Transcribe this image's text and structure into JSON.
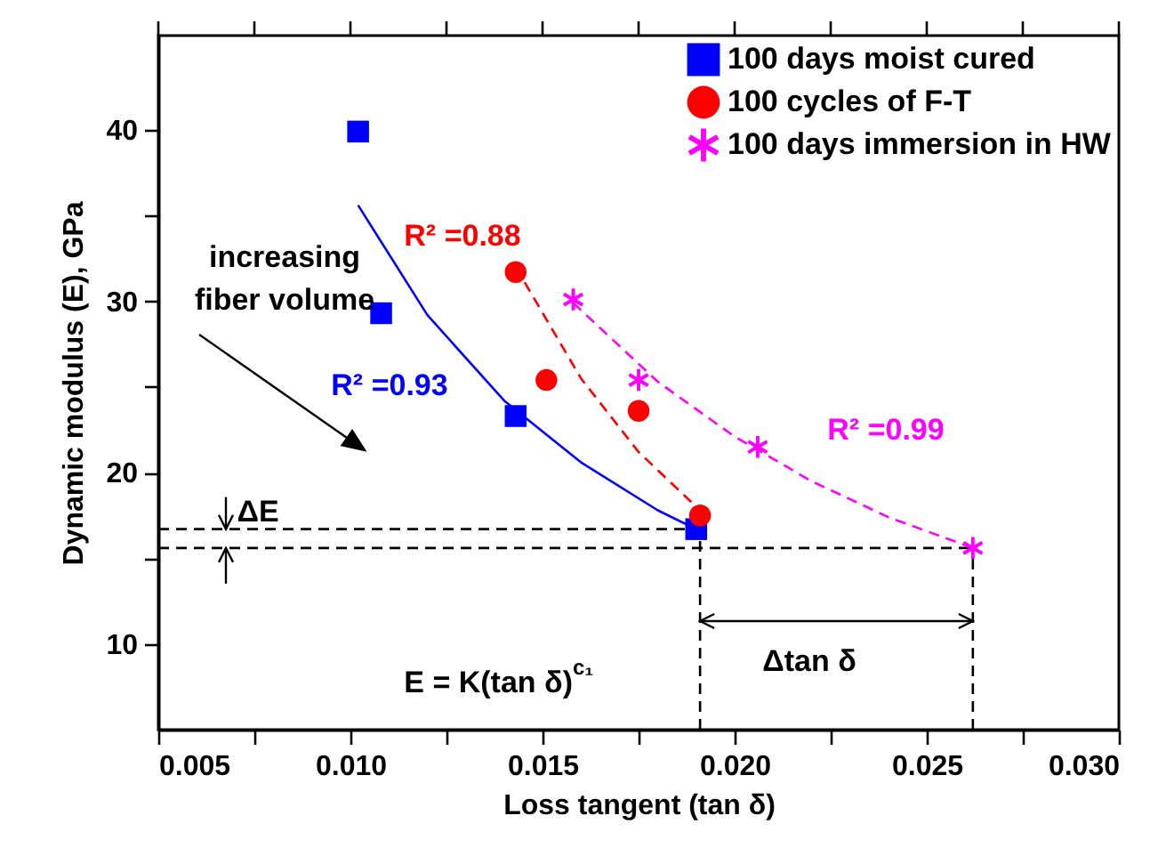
{
  "chart_data": {
    "type": "scatter",
    "xlabel": "Loss tangent (tan δ)",
    "ylabel": "Dynamic modulus (E),  GPa",
    "xlim": [
      0.005,
      0.03
    ],
    "ylim": [
      5,
      45.5
    ],
    "xticks": [
      {
        "value": 0.005,
        "label": "0.005"
      },
      {
        "value": 0.0075,
        "label": null
      },
      {
        "value": 0.01,
        "label": "0.010"
      },
      {
        "value": 0.0125,
        "label": null
      },
      {
        "value": 0.015,
        "label": "0.015"
      },
      {
        "value": 0.0175,
        "label": null
      },
      {
        "value": 0.02,
        "label": "0.020"
      },
      {
        "value": 0.0225,
        "label": null
      },
      {
        "value": 0.025,
        "label": "0.025"
      },
      {
        "value": 0.0275,
        "label": null
      },
      {
        "value": 0.03,
        "label": "0.030"
      }
    ],
    "yticks": [
      10,
      {
        "value": 15,
        "label": null
      },
      20,
      {
        "value": 25,
        "label": null
      },
      30,
      {
        "value": 35,
        "label": null
      },
      40
    ],
    "grid": false,
    "legend": "top right",
    "series": [
      {
        "name": "100 days moist cured",
        "color": "#0000ff",
        "marker": "square",
        "x": [
          0.0102,
          0.0108,
          0.0143,
          0.019
        ],
        "values": [
          39.9,
          29.3,
          23.3,
          16.7
        ]
      },
      {
        "name": "100 cycles of F-T",
        "color": "#ff0000",
        "marker": "circle",
        "x": [
          0.0143,
          0.0151,
          0.0175,
          0.0191
        ],
        "values": [
          31.7,
          25.4,
          23.6,
          17.5
        ]
      },
      {
        "name": "100 days immersion in HW",
        "color": "#ff00ff",
        "marker": "cross",
        "x": [
          0.0158,
          0.0175,
          0.0206,
          0.0262
        ],
        "values": [
          30.1,
          25.4,
          21.5,
          15.6
        ]
      },
      {
        "type": "line",
        "color": "#0000ff",
        "line_style": "solid",
        "x": [
          0.0102,
          0.012,
          0.014,
          0.016,
          0.018,
          0.019
        ],
        "values": [
          35.6,
          29.2,
          24.2,
          20.6,
          17.8,
          16.7
        ]
      },
      {
        "type": "line",
        "color": "#ff0000",
        "line_style": "dashed",
        "x": [
          0.0143,
          0.016,
          0.0175,
          0.0191
        ],
        "values": [
          32,
          25.5,
          21.2,
          17.8
        ]
      },
      {
        "type": "line",
        "color": "#ff00ff",
        "line_style": "dashed",
        "x": [
          0.0158,
          0.018,
          0.02,
          0.022,
          0.024,
          0.0262
        ],
        "values": [
          29.9,
          25.3,
          22.1,
          19.5,
          17.4,
          15.6
        ]
      }
    ],
    "ref_lines": [
      {
        "axis": "y",
        "value": 16.7,
        "line_style": "dashed",
        "color": "#000000"
      },
      {
        "axis": "y",
        "value": 15.6,
        "line_style": "dashed",
        "color": "#000000"
      },
      {
        "axis": "x",
        "value": 0.0191,
        "line_style": "dashed",
        "color": "#000000"
      },
      {
        "axis": "x",
        "value": 0.0262,
        "line_style": "dashed",
        "color": "#000000"
      }
    ],
    "annotations": [
      "R² =0.93",
      "R² =0.88",
      "R² =0.99",
      "increasing\nfiber volume",
      "ΔE",
      "Δtan δ",
      "E = K(tan δ)$^{c₁}$"
    ]
  }
}
